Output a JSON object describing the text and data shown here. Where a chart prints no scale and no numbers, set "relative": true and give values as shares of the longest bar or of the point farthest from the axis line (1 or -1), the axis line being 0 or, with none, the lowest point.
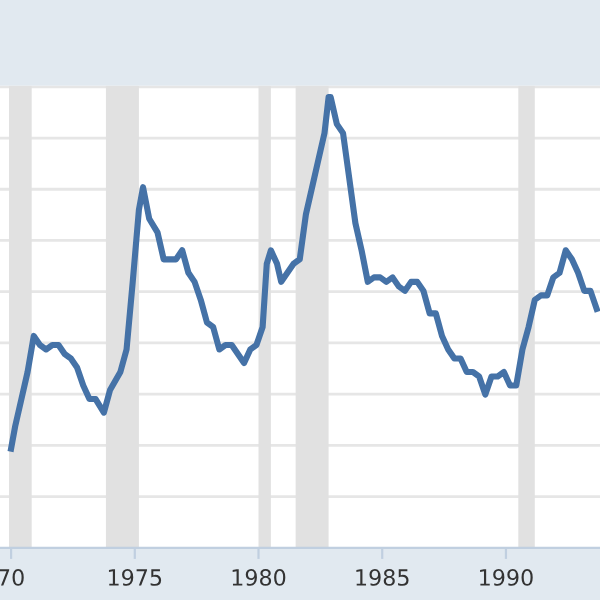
{
  "chart_data": {
    "type": "line",
    "relative": true,
    "x": [
      "1970-01",
      "1970-03",
      "1970-06",
      "1970-09",
      "1970-12",
      "1971-03",
      "1971-06",
      "1971-09",
      "1971-12",
      "1972-03",
      "1972-06",
      "1972-09",
      "1972-12",
      "1973-03",
      "1973-06",
      "1973-10",
      "1974-01",
      "1974-06",
      "1974-09",
      "1974-12",
      "1975-03",
      "1975-05",
      "1975-08",
      "1975-12",
      "1976-03",
      "1976-06",
      "1976-09",
      "1976-12",
      "1977-03",
      "1977-06",
      "1977-09",
      "1977-12",
      "1978-03",
      "1978-06",
      "1978-09",
      "1978-12",
      "1979-03",
      "1979-06",
      "1979-09",
      "1979-12",
      "1980-03",
      "1980-05",
      "1980-07",
      "1980-10",
      "1980-12",
      "1981-03",
      "1981-06",
      "1981-09",
      "1981-12",
      "1982-03",
      "1982-06",
      "1982-09",
      "1982-11",
      "1982-12",
      "1983-03",
      "1983-06",
      "1983-09",
      "1983-12",
      "1984-03",
      "1984-06",
      "1984-09",
      "1984-12",
      "1985-03",
      "1985-06",
      "1985-09",
      "1985-12",
      "1986-03",
      "1986-06",
      "1986-09",
      "1986-12",
      "1987-03",
      "1987-06",
      "1987-09",
      "1987-12",
      "1988-03",
      "1988-06",
      "1988-09",
      "1988-12",
      "1989-03",
      "1989-06",
      "1989-09",
      "1989-12",
      "1990-03",
      "1990-06",
      "1990-09",
      "1990-12",
      "1991-03",
      "1991-06",
      "1991-09",
      "1991-12",
      "1992-03",
      "1992-06",
      "1992-09",
      "1992-12",
      "1993-03",
      "1993-06",
      "1993-09"
    ],
    "series": [
      {
        "color": "#4572a7",
        "values": [
          0.22,
          0.27,
          0.33,
          0.39,
          0.47,
          0.45,
          0.44,
          0.45,
          0.45,
          0.43,
          0.42,
          0.4,
          0.36,
          0.33,
          0.33,
          0.3,
          0.35,
          0.39,
          0.44,
          0.59,
          0.75,
          0.8,
          0.73,
          0.7,
          0.64,
          0.64,
          0.64,
          0.66,
          0.61,
          0.59,
          0.55,
          0.5,
          0.49,
          0.44,
          0.45,
          0.45,
          0.43,
          0.41,
          0.44,
          0.45,
          0.49,
          0.63,
          0.66,
          0.63,
          0.59,
          0.61,
          0.63,
          0.64,
          0.74,
          0.8,
          0.86,
          0.92,
          1.0,
          1.0,
          0.94,
          0.92,
          0.82,
          0.72,
          0.66,
          0.59,
          0.6,
          0.6,
          0.59,
          0.6,
          0.58,
          0.57,
          0.59,
          0.59,
          0.57,
          0.52,
          0.52,
          0.47,
          0.44,
          0.42,
          0.42,
          0.39,
          0.39,
          0.38,
          0.34,
          0.38,
          0.38,
          0.39,
          0.36,
          0.36,
          0.44,
          0.49,
          0.55,
          0.56,
          0.56,
          0.6,
          0.61,
          0.66,
          0.64,
          0.61,
          0.57,
          0.57,
          0.53
        ]
      }
    ],
    "xlim": [
      "1969-07-20",
      "1993-10-20"
    ],
    "xticks": [
      {
        "value": "1970-01",
        "label": "70"
      },
      {
        "value": "1975-01",
        "label": "1975"
      },
      {
        "value": "1980-01",
        "label": "1980"
      },
      {
        "value": "1985-01",
        "label": "1985"
      },
      {
        "value": "1990-01",
        "label": "1990"
      }
    ],
    "bands": [
      {
        "axis": "x",
        "from": "1969-12",
        "to": "1970-11",
        "color": "#e1e1e1"
      },
      {
        "axis": "x",
        "from": "1973-11",
        "to": "1975-03",
        "color": "#e1e1e1"
      },
      {
        "axis": "x",
        "from": "1980-01",
        "to": "1980-07",
        "color": "#e1e1e1"
      },
      {
        "axis": "x",
        "from": "1981-07",
        "to": "1982-11",
        "color": "#e1e1e1"
      },
      {
        "axis": "x",
        "from": "1990-07",
        "to": "1991-03",
        "color": "#e1e1e1"
      }
    ],
    "grid": "y",
    "line_style": "solid",
    "marker": "none"
  }
}
